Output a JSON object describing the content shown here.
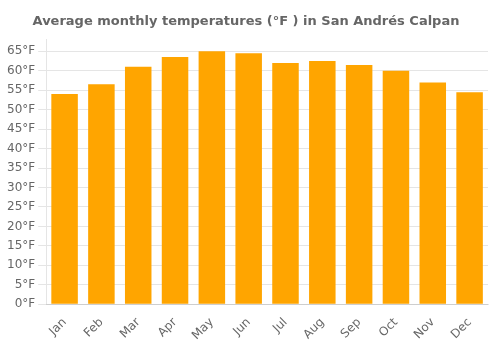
{
  "chart_data": {
    "type": "bar",
    "title": "Average monthly temperatures (°F ) in San Andrés Calpan",
    "categories": [
      "Jan",
      "Feb",
      "Mar",
      "Apr",
      "May",
      "Jun",
      "Jul",
      "Aug",
      "Sep",
      "Oct",
      "Nov",
      "Dec"
    ],
    "values": [
      54,
      56.5,
      61,
      63.5,
      65,
      64.5,
      62,
      62.5,
      61.5,
      60,
      57,
      54.5
    ],
    "color": "#FFA500",
    "ylim": [
      0,
      68
    ],
    "yticks": [
      {
        "value": 0,
        "label": "0°F"
      },
      {
        "value": 5,
        "label": "5°F"
      },
      {
        "value": 10,
        "label": "10°F"
      },
      {
        "value": 15,
        "label": "15°F"
      },
      {
        "value": 20,
        "label": "20°F"
      },
      {
        "value": 25,
        "label": "25°F"
      },
      {
        "value": 30,
        "label": "30°F"
      },
      {
        "value": 35,
        "label": "35°F"
      },
      {
        "value": 40,
        "label": "40°F"
      },
      {
        "value": 45,
        "label": "45°F"
      },
      {
        "value": 50,
        "label": "50°F"
      },
      {
        "value": 55,
        "label": "55°F"
      },
      {
        "value": 60,
        "label": "60°F"
      },
      {
        "value": 65,
        "label": "65°F"
      }
    ],
    "grid": true
  }
}
